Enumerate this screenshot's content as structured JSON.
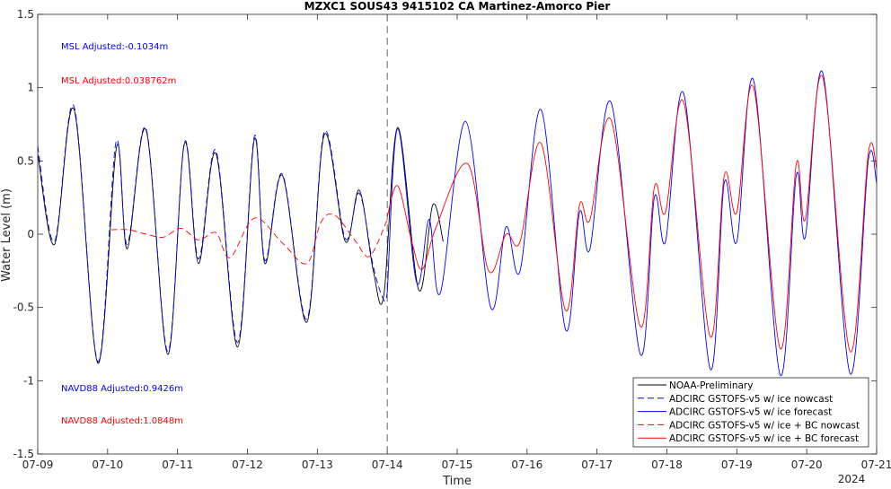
{
  "chart_data": {
    "type": "line",
    "title": "MZXC1 SOUS43 9415102 CA Martinez-Amorco Pier",
    "xlabel": "Time",
    "ylabel": "Water Level (m)",
    "year_label": "2024",
    "xlim": [
      "07-09",
      "07-21"
    ],
    "ylim": [
      -1.5,
      1.5
    ],
    "x_ticks": [
      "07-09",
      "07-10",
      "07-11",
      "07-12",
      "07-13",
      "07-14",
      "07-15",
      "07-16",
      "07-17",
      "07-18",
      "07-19",
      "07-20",
      "07-21"
    ],
    "y_ticks": [
      "-1.5",
      "-1",
      "-0.5",
      "0",
      "0.5",
      "1",
      "1.5"
    ],
    "vertical_marker": "07-14",
    "legend_position": "bottom-right",
    "annotations": [
      {
        "text": "MSL Adjusted:-0.1034m",
        "color": "#0000ff"
      },
      {
        "text": "MSL Adjusted:0.038762m",
        "color": "#ff0000"
      },
      {
        "text": "NAVD88 Adjusted:0.9426m",
        "color": "#0000ff"
      },
      {
        "text": "NAVD88 Adjusted:1.0848m",
        "color": "#ff0000"
      }
    ],
    "series": [
      {
        "name": "NOAA-Preliminary",
        "color": "#000000",
        "dash": "solid",
        "points": [
          [
            0.0,
            0.55
          ],
          [
            0.24,
            -0.07
          ],
          [
            0.52,
            0.85
          ],
          [
            0.86,
            -0.88
          ],
          [
            1.13,
            0.6
          ],
          [
            1.28,
            -0.1
          ],
          [
            1.55,
            0.71
          ],
          [
            1.86,
            -0.82
          ],
          [
            2.1,
            0.62
          ],
          [
            2.3,
            -0.2
          ],
          [
            2.55,
            0.55
          ],
          [
            2.86,
            -0.77
          ],
          [
            3.1,
            0.65
          ],
          [
            3.25,
            -0.2
          ],
          [
            3.5,
            0.4
          ],
          [
            3.85,
            -0.6
          ],
          [
            4.1,
            0.68
          ],
          [
            4.4,
            -0.05
          ],
          [
            4.6,
            0.3
          ],
          [
            4.8,
            -0.25
          ],
          [
            4.95,
            -0.42
          ],
          [
            5.15,
            0.73
          ],
          [
            5.45,
            -0.38
          ],
          [
            5.65,
            0.2
          ],
          [
            5.8,
            -0.05
          ]
        ]
      },
      {
        "name": "ADCIRC GSTOFS-v5 w/ ice nowcast",
        "color": "#0000ff",
        "dash": "dashed",
        "points": [
          [
            0.0,
            0.6
          ],
          [
            0.24,
            -0.05
          ],
          [
            0.52,
            0.87
          ],
          [
            0.86,
            -0.87
          ],
          [
            1.12,
            0.63
          ],
          [
            1.28,
            -0.07
          ],
          [
            1.55,
            0.72
          ],
          [
            1.86,
            -0.8
          ],
          [
            2.1,
            0.63
          ],
          [
            2.3,
            -0.17
          ],
          [
            2.55,
            0.57
          ],
          [
            2.86,
            -0.74
          ],
          [
            3.1,
            0.67
          ],
          [
            3.25,
            -0.18
          ],
          [
            3.5,
            0.41
          ],
          [
            3.85,
            -0.58
          ],
          [
            4.1,
            0.7
          ],
          [
            4.4,
            -0.03
          ],
          [
            4.6,
            0.28
          ],
          [
            4.8,
            -0.22
          ],
          [
            4.95,
            -0.45
          ],
          [
            5.0,
            -0.4
          ]
        ]
      },
      {
        "name": "ADCIRC GSTOFS-v5 w/ ice forecast",
        "color": "#0000ff",
        "dash": "solid",
        "points": [
          [
            5.0,
            -0.4
          ],
          [
            5.15,
            0.72
          ],
          [
            5.42,
            -0.33
          ],
          [
            5.6,
            0.1
          ],
          [
            5.76,
            -0.4
          ],
          [
            6.12,
            0.77
          ],
          [
            6.48,
            -0.5
          ],
          [
            6.7,
            0.05
          ],
          [
            6.9,
            -0.25
          ],
          [
            7.2,
            0.85
          ],
          [
            7.55,
            -0.65
          ],
          [
            7.75,
            0.15
          ],
          [
            7.9,
            -0.1
          ],
          [
            8.2,
            0.9
          ],
          [
            8.62,
            -0.82
          ],
          [
            8.82,
            0.25
          ],
          [
            8.98,
            -0.05
          ],
          [
            9.24,
            0.96
          ],
          [
            9.62,
            -0.92
          ],
          [
            9.82,
            0.35
          ],
          [
            10.0,
            -0.05
          ],
          [
            10.24,
            1.05
          ],
          [
            10.62,
            -0.96
          ],
          [
            10.85,
            0.4
          ],
          [
            10.98,
            -0.02
          ],
          [
            11.23,
            1.1
          ],
          [
            11.62,
            -0.95
          ],
          [
            11.88,
            0.5
          ],
          [
            12.0,
            0.35
          ]
        ]
      },
      {
        "name": "ADCIRC GSTOFS-v5 w/ ice + BC nowcast",
        "color": "#ff0000",
        "dash": "dashed",
        "points": [
          [
            1.05,
            0.03
          ],
          [
            1.3,
            0.03
          ],
          [
            1.55,
            0.0
          ],
          [
            1.8,
            -0.02
          ],
          [
            2.05,
            0.04
          ],
          [
            2.3,
            -0.04
          ],
          [
            2.55,
            0.01
          ],
          [
            2.75,
            -0.16
          ],
          [
            3.1,
            0.11
          ],
          [
            3.5,
            -0.06
          ],
          [
            3.85,
            -0.2
          ],
          [
            4.05,
            0.08
          ],
          [
            4.25,
            0.13
          ],
          [
            4.55,
            -0.05
          ],
          [
            4.75,
            -0.15
          ],
          [
            5.0,
            0.1
          ]
        ]
      },
      {
        "name": "ADCIRC GSTOFS-v5 w/ ice + BC forecast",
        "color": "#ff0000",
        "dash": "solid",
        "points": [
          [
            5.0,
            0.12
          ],
          [
            5.15,
            0.33
          ],
          [
            5.35,
            -0.05
          ],
          [
            5.5,
            -0.24
          ],
          [
            5.7,
            0.05
          ],
          [
            6.15,
            0.48
          ],
          [
            6.45,
            -0.25
          ],
          [
            6.7,
            0.0
          ],
          [
            6.9,
            -0.05
          ],
          [
            7.2,
            0.62
          ],
          [
            7.55,
            -0.52
          ],
          [
            7.75,
            0.2
          ],
          [
            7.9,
            0.1
          ],
          [
            8.2,
            0.78
          ],
          [
            8.62,
            -0.63
          ],
          [
            8.82,
            0.32
          ],
          [
            8.98,
            0.15
          ],
          [
            9.24,
            0.9
          ],
          [
            9.62,
            -0.7
          ],
          [
            9.82,
            0.4
          ],
          [
            10.0,
            0.15
          ],
          [
            10.24,
            1.0
          ],
          [
            10.62,
            -0.78
          ],
          [
            10.85,
            0.48
          ],
          [
            10.98,
            0.1
          ],
          [
            11.23,
            1.07
          ],
          [
            11.62,
            -0.8
          ],
          [
            11.88,
            0.55
          ],
          [
            12.0,
            0.45
          ]
        ]
      }
    ]
  }
}
